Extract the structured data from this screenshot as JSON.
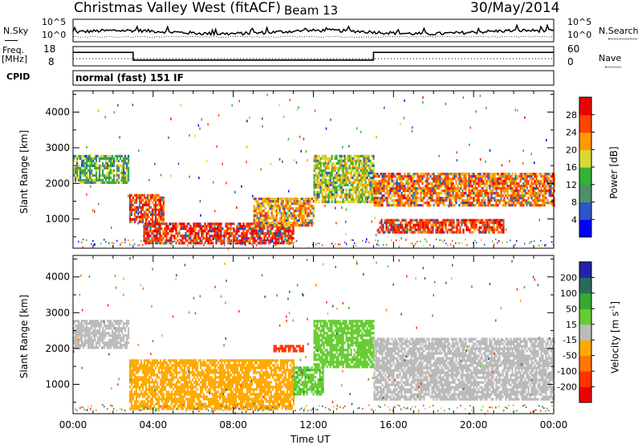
{
  "header": {
    "station": "Christmas Valley West (fitACF)",
    "beam": "Beam 13",
    "date": "30/May/2014"
  },
  "top_panels": {
    "nsky_label": "N.Sky",
    "nsky_ticks": [
      "10^5",
      "10^0"
    ],
    "nsearch_label": "N.Search",
    "nsearch_ticks": [
      "10^5",
      "10^0"
    ],
    "freq_label": "Freq.",
    "freq_unit": "[MHz]",
    "freq_ticks": [
      18,
      8
    ],
    "nave_label": "Nave",
    "nave_ticks": [
      60,
      0
    ],
    "cpid_label": "CPID",
    "cpid_value": "normal (fast) 151 IF",
    "freq_data": {
      "type": "line",
      "x_hours": [
        0,
        3,
        3,
        15,
        15,
        24
      ],
      "freq_mhz": [
        15,
        15,
        11,
        11,
        15,
        15
      ],
      "ylim": [
        8,
        18
      ]
    }
  },
  "chart_data": [
    {
      "type": "heatmap",
      "ylabel": "Slant Range [km]",
      "yticks": [
        1000,
        2000,
        3000,
        4000
      ],
      "ylim": [
        180,
        4600
      ],
      "xlim_hours": [
        0,
        24
      ],
      "colorbar": {
        "label": "Power [dB]",
        "ticks": [
          4,
          8,
          12,
          16,
          20,
          24,
          28
        ],
        "range": [
          0,
          32
        ],
        "colors": [
          "#0000ff",
          "#2b55c8",
          "#4f8f6a",
          "#33b233",
          "#d8d830",
          "#ff9900",
          "#ff4400",
          "#ee0000"
        ]
      },
      "echo_bands": [
        {
          "t": [
            0.0,
            2.8
          ],
          "range_km": [
            2000,
            2800
          ],
          "value": 14
        },
        {
          "t": [
            2.8,
            4.5
          ],
          "range_km": [
            900,
            1700
          ],
          "value": 26
        },
        {
          "t": [
            3.5,
            11.0
          ],
          "range_km": [
            300,
            900
          ],
          "value": 28
        },
        {
          "t": [
            9.0,
            12.0
          ],
          "range_km": [
            800,
            1600
          ],
          "value": 22
        },
        {
          "t": [
            12.0,
            15.0
          ],
          "range_km": [
            1500,
            2800
          ],
          "value": 18
        },
        {
          "t": [
            15.0,
            24.0
          ],
          "range_km": [
            1400,
            2300
          ],
          "value": 24
        },
        {
          "t": [
            15.2,
            21.5
          ],
          "range_km": [
            600,
            1000
          ],
          "value": 27
        }
      ]
    },
    {
      "type": "heatmap",
      "ylabel": "Slant Range [km]",
      "yticks": [
        1000,
        2000,
        3000,
        4000
      ],
      "ylim": [
        180,
        4600
      ],
      "xlim_hours": [
        0,
        24
      ],
      "xticks": [
        "00:00",
        "04:00",
        "08:00",
        "12:00",
        "16:00",
        "20:00",
        "00:00"
      ],
      "xlabel": "Time UT",
      "colorbar": {
        "label": "Velocity",
        "unit": "[m s",
        "unit_exp": "-1",
        "unit_close": "]",
        "ticks": [
          200,
          100,
          50,
          15,
          -15,
          -50,
          -100,
          -200
        ],
        "colors": [
          "#2222aa",
          "#2a6a5a",
          "#33aa33",
          "#66cc33",
          "#bbbbbb",
          "#ffaa00",
          "#ff7700",
          "#ff3300",
          "#ee0000"
        ]
      },
      "echo_bands": [
        {
          "t": [
            0.0,
            2.8
          ],
          "range_km": [
            2000,
            2800
          ],
          "value": 0
        },
        {
          "t": [
            2.8,
            11.0
          ],
          "range_km": [
            300,
            1700
          ],
          "value": -30
        },
        {
          "t": [
            10.0,
            11.5
          ],
          "range_km": [
            1900,
            2100
          ],
          "value": -150
        },
        {
          "t": [
            11.0,
            12.5
          ],
          "range_km": [
            700,
            1500
          ],
          "value": 40
        },
        {
          "t": [
            12.0,
            15.0
          ],
          "range_km": [
            1500,
            2800
          ],
          "value": 30
        },
        {
          "t": [
            15.0,
            24.0
          ],
          "range_km": [
            600,
            2300
          ],
          "value": 0
        }
      ]
    }
  ]
}
